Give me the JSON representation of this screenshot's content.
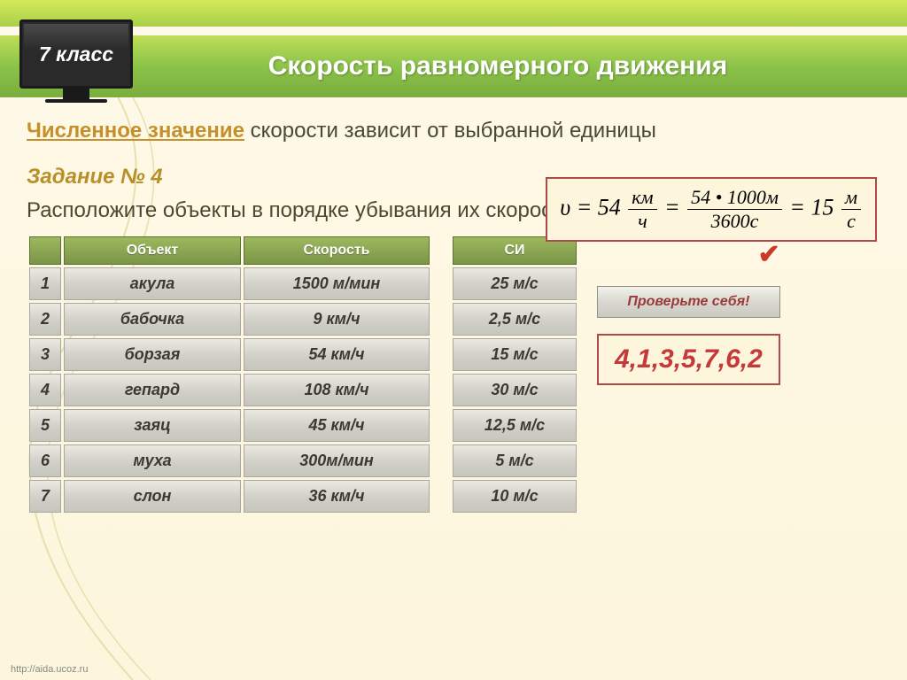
{
  "header": {
    "grade_label": "7 класс",
    "title": "Скорость равномерного движения"
  },
  "statement": {
    "highlight": "Численное значение",
    "rest": " скорости зависит от выбранной единицы"
  },
  "formula": {
    "lhs_symbol": "υ",
    "value_kmh": "54",
    "unit_km": "км",
    "unit_h": "ч",
    "num": "54 • 1000м",
    "den": "3600с",
    "result": "15",
    "unit_m": "м",
    "unit_s": "с"
  },
  "task": {
    "label": "Задание № 4",
    "text": "Расположите объекты в порядке  убывания их скорости"
  },
  "table": {
    "headers": {
      "object": "Объект",
      "speed": "Скорость",
      "si": "СИ"
    },
    "rows": [
      {
        "n": "1",
        "object": "акула",
        "speed": "1500 м/мин",
        "si": "25 м/с"
      },
      {
        "n": "2",
        "object": "бабочка",
        "speed": "9 км/ч",
        "si": "2,5 м/с"
      },
      {
        "n": "3",
        "object": "борзая",
        "speed": "54 км/ч",
        "si": "15 м/с"
      },
      {
        "n": "4",
        "object": "гепард",
        "speed": "108 км/ч",
        "si": "30 м/с"
      },
      {
        "n": "5",
        "object": "заяц",
        "speed": "45 км/ч",
        "si": "12,5 м/с"
      },
      {
        "n": "6",
        "object": "муха",
        "speed": "300м/мин",
        "si": "5 м/с"
      },
      {
        "n": "7",
        "object": "слон",
        "speed": "36 км/ч",
        "si": "10 м/с"
      }
    ]
  },
  "check_button": "Проверьте себя!",
  "answer": "4,1,3,5,7,6,2",
  "footer_link": "http://aida.ucoz.ru",
  "colors": {
    "accent_green": "#8bc34a",
    "accent_red": "#c43a3a",
    "accent_gold": "#b8902a",
    "row_bg": "#d0d0c8"
  }
}
